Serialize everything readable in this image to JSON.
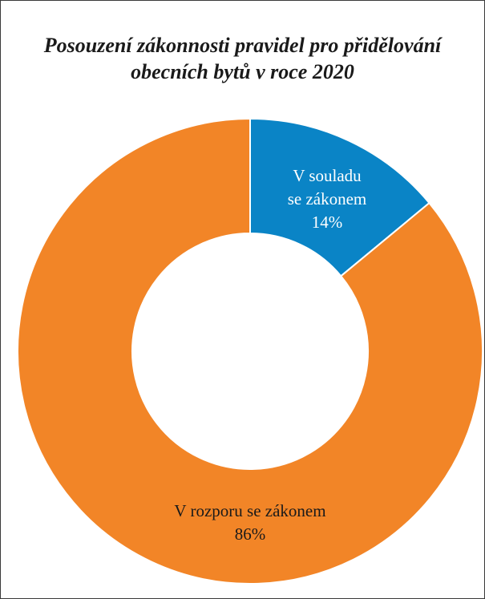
{
  "chart_data": {
    "type": "pie",
    "donut": true,
    "title_lines": [
      "Posouzení zákonnosti pravidel pro přidělování",
      "obecních bytů v roce 2020"
    ],
    "slices": [
      {
        "label_lines": [
          "V souladu",
          "se zákonem"
        ],
        "value": 14,
        "value_label": "14%",
        "color": "#0a84c6",
        "text_color": "#ffffff"
      },
      {
        "label_lines": [
          "V rozporu se zákonem"
        ],
        "value": 86,
        "value_label": "86%",
        "color": "#f28527",
        "text_color": "#1a1a1a"
      }
    ],
    "start_angle_deg": 0,
    "direction": "clockwise",
    "legend": "none"
  }
}
